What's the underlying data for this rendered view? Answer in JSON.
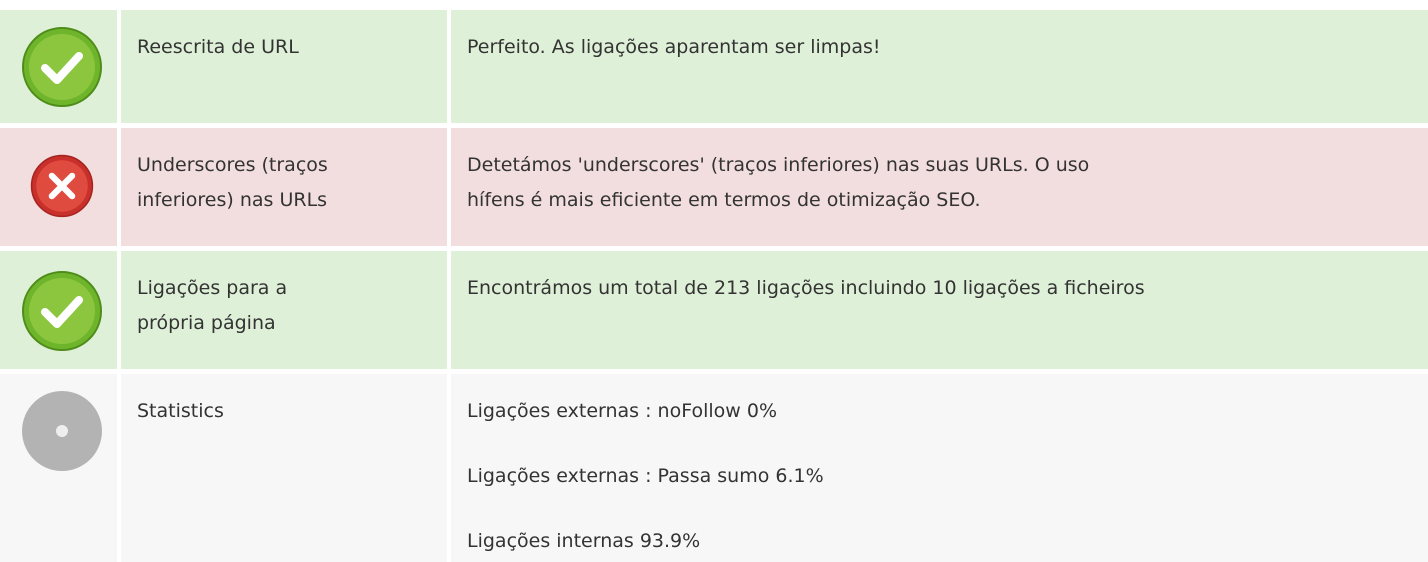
{
  "rows": [
    {
      "label": [
        "Reescrita de URL"
      ],
      "description": [
        "Perfeito. As ligações aparentam ser limpas!"
      ]
    },
    {
      "label": [
        "Underscores (traços",
        "inferiores) nas URLs"
      ],
      "description": [
        "Detetámos 'underscores' (traços inferiores) nas suas URLs. O uso",
        "hífens é mais eficiente em termos de otimização SEO."
      ]
    },
    {
      "label": [
        "Ligações para a",
        "própria página"
      ],
      "description": [
        "Encontrámos um total de 213 ligações incluindo 10 ligações a ficheiros"
      ]
    },
    {
      "label": [
        "Statistics"
      ],
      "description": [
        "Ligações externas : noFollow 0%",
        "Ligações externas : Passa sumo 6.1%",
        "Ligações internas 93.9%"
      ]
    }
  ]
}
